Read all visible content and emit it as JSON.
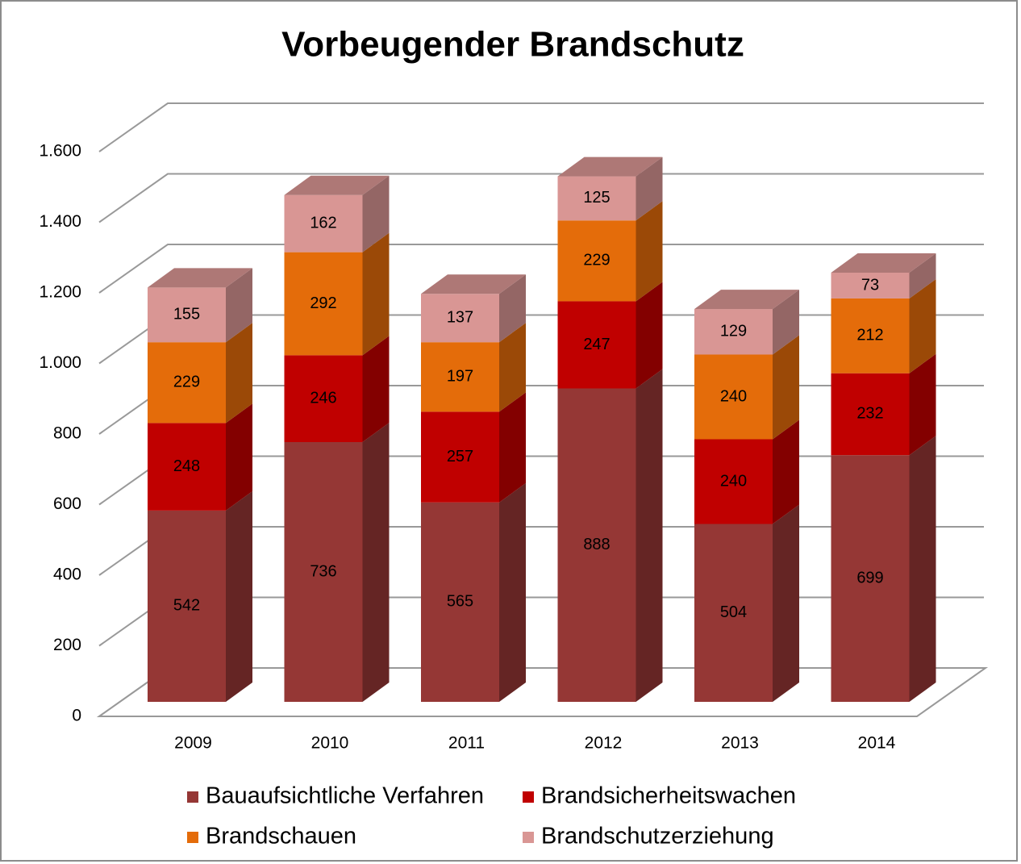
{
  "chart_data": {
    "type": "bar3d_stacked",
    "title": "Vorbeugender Brandschutz",
    "categories": [
      "2009",
      "2010",
      "2011",
      "2012",
      "2013",
      "2014"
    ],
    "series": [
      {
        "name": "Bauaufsichtliche Verfahren",
        "color": "#953735",
        "values": [
          542,
          736,
          565,
          888,
          504,
          699
        ]
      },
      {
        "name": "Brandsicherheitswachen",
        "color": "#c00000",
        "values": [
          248,
          246,
          257,
          247,
          240,
          232
        ]
      },
      {
        "name": "Brandschauen",
        "color": "#e46c0a",
        "values": [
          229,
          292,
          197,
          229,
          240,
          212
        ]
      },
      {
        "name": "Brandschutzerziehung",
        "color": "#d99694",
        "values": [
          155,
          162,
          137,
          125,
          129,
          73
        ]
      }
    ],
    "ylim": [
      0,
      1600
    ],
    "yticks": [
      0,
      200,
      400,
      600,
      800,
      {
        "value": 1000,
        "label": "1.000"
      },
      {
        "value": 1200,
        "label": "1.200"
      },
      {
        "value": 1400,
        "label": "1.400"
      },
      {
        "value": 1600,
        "label": "1.600"
      }
    ],
    "grid": true
  }
}
